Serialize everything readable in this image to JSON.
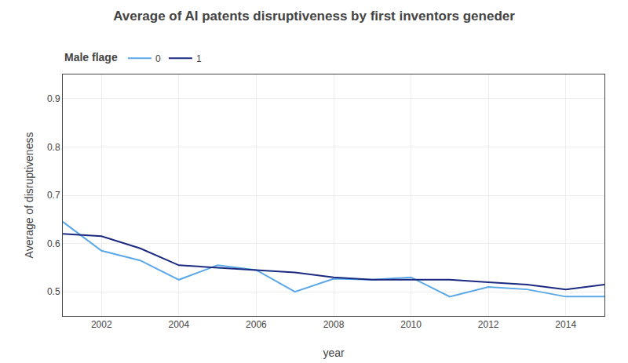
{
  "chart_data": {
    "type": "line",
    "title": "Average of AI patents disruptiveness by first inventors geneder",
    "x_label": "year",
    "y_label": "Average of disruptiveness",
    "legend_title": "Male flage",
    "legend": "upper left",
    "x": [
      2001,
      2002,
      2003,
      2004,
      2005,
      2006,
      2007,
      2008,
      2009,
      2010,
      2011,
      2012,
      2013,
      2014,
      2015
    ],
    "series": [
      {
        "name": "0",
        "color": "#5aa8e8",
        "values": [
          0.645,
          0.585,
          0.565,
          0.525,
          0.555,
          0.545,
          0.5,
          0.527,
          0.525,
          0.53,
          0.49,
          0.51,
          0.505,
          0.49,
          0.49
        ]
      },
      {
        "name": "1",
        "color": "#1b2a80",
        "values": [
          0.62,
          0.615,
          0.59,
          0.555,
          0.55,
          0.545,
          0.54,
          0.53,
          0.525,
          0.525,
          0.525,
          0.52,
          0.515,
          0.505,
          0.515
        ]
      }
    ],
    "xlim": [
      2001,
      2015
    ],
    "xticks": [
      2002,
      2004,
      2006,
      2008,
      2010,
      2012,
      2014
    ],
    "ylim": [
      0.45,
      0.95
    ],
    "yticks": [
      0.5,
      0.6,
      0.7,
      0.8,
      0.9
    ],
    "grid": true
  }
}
